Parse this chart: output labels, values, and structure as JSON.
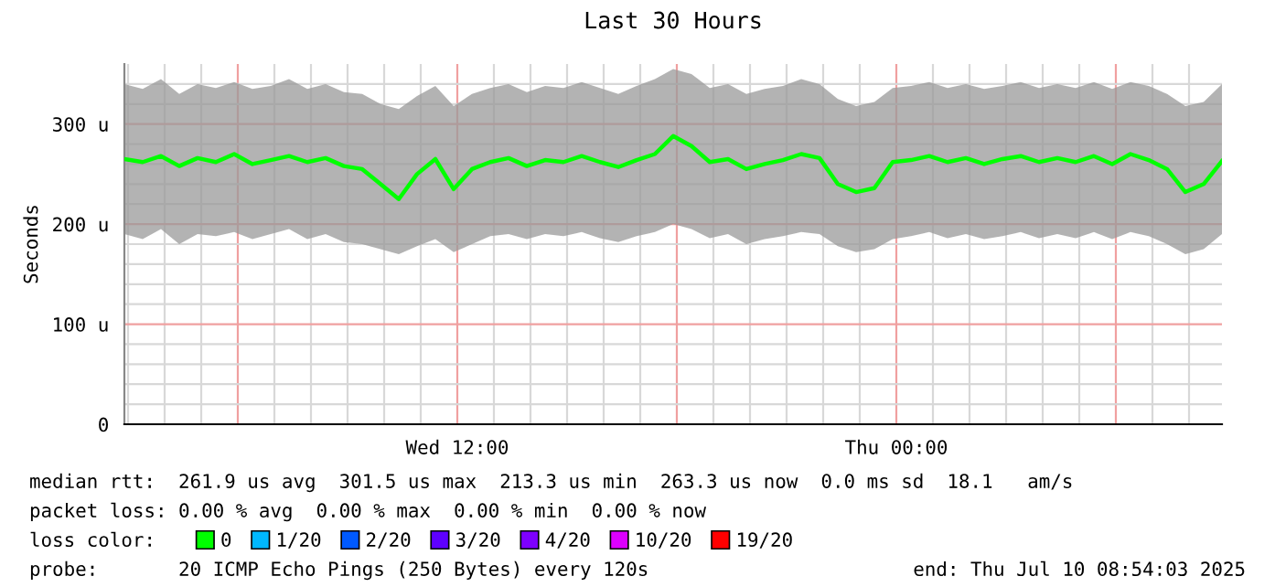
{
  "chart_data": {
    "type": "line",
    "title": "Last 30 Hours",
    "ylabel": "Seconds",
    "legend_title": "loss color:",
    "x": [
      "2025-07-09T02:54",
      "2025-07-09T03:24",
      "2025-07-09T03:54",
      "2025-07-09T04:24",
      "2025-07-09T04:54",
      "2025-07-09T05:24",
      "2025-07-09T05:54",
      "2025-07-09T06:24",
      "2025-07-09T06:54",
      "2025-07-09T07:24",
      "2025-07-09T07:54",
      "2025-07-09T08:24",
      "2025-07-09T08:54",
      "2025-07-09T09:24",
      "2025-07-09T09:54",
      "2025-07-09T10:24",
      "2025-07-09T10:54",
      "2025-07-09T11:24",
      "2025-07-09T11:54",
      "2025-07-09T12:24",
      "2025-07-09T12:54",
      "2025-07-09T13:24",
      "2025-07-09T13:54",
      "2025-07-09T14:24",
      "2025-07-09T14:54",
      "2025-07-09T15:24",
      "2025-07-09T15:54",
      "2025-07-09T16:24",
      "2025-07-09T16:54",
      "2025-07-09T17:24",
      "2025-07-09T17:54",
      "2025-07-09T18:24",
      "2025-07-09T18:54",
      "2025-07-09T19:24",
      "2025-07-09T19:54",
      "2025-07-09T20:24",
      "2025-07-09T20:54",
      "2025-07-09T21:24",
      "2025-07-09T21:54",
      "2025-07-09T22:24",
      "2025-07-09T22:54",
      "2025-07-09T23:24",
      "2025-07-09T23:54",
      "2025-07-10T00:24",
      "2025-07-10T00:54",
      "2025-07-10T01:24",
      "2025-07-10T01:54",
      "2025-07-10T02:24",
      "2025-07-10T02:54",
      "2025-07-10T03:24",
      "2025-07-10T03:54",
      "2025-07-10T04:24",
      "2025-07-10T04:54",
      "2025-07-10T05:24",
      "2025-07-10T05:54",
      "2025-07-10T06:24",
      "2025-07-10T06:54",
      "2025-07-10T07:24",
      "2025-07-10T07:54",
      "2025-07-10T08:24",
      "2025-07-10T08:54"
    ],
    "series": [
      {
        "name": "0",
        "color": "#00ff00",
        "values": [
          265,
          262,
          268,
          258,
          266,
          262,
          270,
          260,
          264,
          268,
          262,
          266,
          258,
          255,
          240,
          225,
          250,
          265,
          235,
          255,
          262,
          266,
          258,
          264,
          262,
          268,
          262,
          257,
          264,
          270,
          288,
          278,
          262,
          265,
          255,
          260,
          264,
          270,
          266,
          240,
          232,
          236,
          262,
          264,
          268,
          262,
          266,
          260,
          265,
          268,
          262,
          266,
          262,
          268,
          260,
          270,
          264,
          255,
          232,
          240,
          263
        ],
        "lower": [
          190,
          185,
          195,
          180,
          190,
          188,
          192,
          185,
          190,
          195,
          185,
          190,
          182,
          180,
          175,
          170,
          178,
          185,
          172,
          180,
          188,
          190,
          185,
          190,
          188,
          192,
          186,
          182,
          188,
          192,
          200,
          195,
          186,
          190,
          180,
          185,
          188,
          192,
          190,
          178,
          172,
          175,
          185,
          188,
          192,
          186,
          190,
          185,
          188,
          192,
          186,
          190,
          186,
          192,
          185,
          192,
          188,
          180,
          170,
          175,
          190
        ],
        "upper": [
          340,
          335,
          345,
          330,
          340,
          336,
          342,
          335,
          338,
          345,
          335,
          340,
          332,
          330,
          320,
          315,
          328,
          338,
          318,
          330,
          336,
          340,
          332,
          338,
          336,
          342,
          336,
          330,
          338,
          345,
          355,
          350,
          336,
          340,
          330,
          335,
          338,
          345,
          340,
          325,
          318,
          322,
          336,
          338,
          342,
          336,
          340,
          335,
          338,
          342,
          336,
          340,
          336,
          342,
          335,
          342,
          338,
          330,
          318,
          322,
          340
        ]
      },
      {
        "name": "1/20",
        "color": "#00b8ff",
        "values": [
          null,
          null,
          null,
          null,
          null,
          null,
          null,
          null,
          null,
          null,
          null,
          null,
          null,
          null,
          null,
          null,
          null,
          null,
          null,
          null,
          null,
          null,
          null,
          null,
          null,
          null,
          null,
          null,
          null,
          null,
          null,
          null,
          null,
          null,
          null,
          null,
          null,
          null,
          null,
          null,
          null,
          null,
          null,
          null,
          null,
          null,
          null,
          null,
          null,
          null,
          null,
          null,
          null,
          null,
          null,
          null,
          null,
          null,
          null,
          null,
          null
        ]
      },
      {
        "name": "2/20",
        "color": "#0059ff",
        "values": [
          null,
          null,
          null,
          null,
          null,
          null,
          null,
          null,
          null,
          null,
          null,
          null,
          null,
          null,
          null,
          null,
          null,
          null,
          null,
          null,
          null,
          null,
          null,
          null,
          null,
          null,
          null,
          null,
          null,
          null,
          null,
          null,
          null,
          null,
          null,
          null,
          null,
          null,
          null,
          null,
          null,
          null,
          null,
          null,
          null,
          null,
          null,
          null,
          null,
          null,
          null,
          null,
          null,
          null,
          null,
          null,
          null,
          null,
          null,
          null,
          null
        ]
      },
      {
        "name": "3/20",
        "color": "#5e00ff",
        "values": [
          null,
          null,
          null,
          null,
          null,
          null,
          null,
          null,
          null,
          null,
          null,
          null,
          null,
          null,
          null,
          null,
          null,
          null,
          null,
          null,
          null,
          null,
          null,
          null,
          null,
          null,
          null,
          null,
          null,
          null,
          null,
          null,
          null,
          null,
          null,
          null,
          null,
          null,
          null,
          null,
          null,
          null,
          null,
          null,
          null,
          null,
          null,
          null,
          null,
          null,
          null,
          null,
          null,
          null,
          null,
          null,
          null,
          null,
          null,
          null,
          null
        ]
      },
      {
        "name": "4/20",
        "color": "#7e00ff",
        "values": [
          null,
          null,
          null,
          null,
          null,
          null,
          null,
          null,
          null,
          null,
          null,
          null,
          null,
          null,
          null,
          null,
          null,
          null,
          null,
          null,
          null,
          null,
          null,
          null,
          null,
          null,
          null,
          null,
          null,
          null,
          null,
          null,
          null,
          null,
          null,
          null,
          null,
          null,
          null,
          null,
          null,
          null,
          null,
          null,
          null,
          null,
          null,
          null,
          null,
          null,
          null,
          null,
          null,
          null,
          null,
          null,
          null,
          null,
          null,
          null,
          null
        ]
      },
      {
        "name": "10/20",
        "color": "#dd00ff",
        "values": [
          null,
          null,
          null,
          null,
          null,
          null,
          null,
          null,
          null,
          null,
          null,
          null,
          null,
          null,
          null,
          null,
          null,
          null,
          null,
          null,
          null,
          null,
          null,
          null,
          null,
          null,
          null,
          null,
          null,
          null,
          null,
          null,
          null,
          null,
          null,
          null,
          null,
          null,
          null,
          null,
          null,
          null,
          null,
          null,
          null,
          null,
          null,
          null,
          null,
          null,
          null,
          null,
          null,
          null,
          null,
          null,
          null,
          null,
          null,
          null,
          null
        ]
      },
      {
        "name": "19/20",
        "color": "#ff0000",
        "values": [
          null,
          null,
          null,
          null,
          null,
          null,
          null,
          null,
          null,
          null,
          null,
          null,
          null,
          null,
          null,
          null,
          null,
          null,
          null,
          null,
          null,
          null,
          null,
          null,
          null,
          null,
          null,
          null,
          null,
          null,
          null,
          null,
          null,
          null,
          null,
          null,
          null,
          null,
          null,
          null,
          null,
          null,
          null,
          null,
          null,
          null,
          null,
          null,
          null,
          null,
          null,
          null,
          null,
          null,
          null,
          null,
          null,
          null,
          null,
          null,
          null
        ]
      }
    ],
    "xlim": [
      "2025-07-09T02:54",
      "2025-07-10T08:54"
    ],
    "xticks": [
      {
        "value": "2025-07-09T03:00",
        "label": null
      },
      {
        "value": "2025-07-09T04:00",
        "label": null
      },
      {
        "value": "2025-07-09T05:00",
        "label": null
      },
      {
        "value": "2025-07-09T06:00",
        "label": null
      },
      {
        "value": "2025-07-09T07:00",
        "label": null
      },
      {
        "value": "2025-07-09T08:00",
        "label": null
      },
      {
        "value": "2025-07-09T09:00",
        "label": null
      },
      {
        "value": "2025-07-09T10:00",
        "label": null
      },
      {
        "value": "2025-07-09T11:00",
        "label": null
      },
      {
        "value": "2025-07-09T12:00",
        "label": "Wed 12:00"
      },
      {
        "value": "2025-07-09T13:00",
        "label": null
      },
      {
        "value": "2025-07-09T14:00",
        "label": null
      },
      {
        "value": "2025-07-09T15:00",
        "label": null
      },
      {
        "value": "2025-07-09T16:00",
        "label": null
      },
      {
        "value": "2025-07-09T17:00",
        "label": null
      },
      {
        "value": "2025-07-09T18:00",
        "label": null
      },
      {
        "value": "2025-07-09T19:00",
        "label": null
      },
      {
        "value": "2025-07-09T20:00",
        "label": null
      },
      {
        "value": "2025-07-09T21:00",
        "label": null
      },
      {
        "value": "2025-07-09T22:00",
        "label": null
      },
      {
        "value": "2025-07-09T23:00",
        "label": null
      },
      {
        "value": "2025-07-10T00:00",
        "label": "Thu 00:00"
      },
      {
        "value": "2025-07-10T01:00",
        "label": null
      },
      {
        "value": "2025-07-10T02:00",
        "label": null
      },
      {
        "value": "2025-07-10T03:00",
        "label": null
      },
      {
        "value": "2025-07-10T04:00",
        "label": null
      },
      {
        "value": "2025-07-10T05:00",
        "label": null
      },
      {
        "value": "2025-07-10T06:00",
        "label": null
      },
      {
        "value": "2025-07-10T07:00",
        "label": null
      },
      {
        "value": "2025-07-10T08:00",
        "label": null
      }
    ],
    "ylim": [
      0,
      360
    ],
    "yticks": [
      {
        "value": 0,
        "label": "0"
      },
      {
        "value": 20,
        "label": null
      },
      {
        "value": 40,
        "label": null
      },
      {
        "value": 60,
        "label": null
      },
      {
        "value": 80,
        "label": null
      },
      {
        "value": 100,
        "label": "100 u"
      },
      {
        "value": 120,
        "label": null
      },
      {
        "value": 140,
        "label": null
      },
      {
        "value": 160,
        "label": null
      },
      {
        "value": 180,
        "label": null
      },
      {
        "value": 200,
        "label": "200 u"
      },
      {
        "value": 220,
        "label": null
      },
      {
        "value": 240,
        "label": null
      },
      {
        "value": 260,
        "label": null
      },
      {
        "value": 280,
        "label": null
      },
      {
        "value": 300,
        "label": "300 u"
      },
      {
        "value": 320,
        "label": null
      },
      {
        "value": 340,
        "label": null
      }
    ],
    "grid": true,
    "legend": "bottom",
    "annotations": [
      "median rtt:  261.9 us avg  301.5 us max  213.3 us min  263.3 us now  0.0 ms sd  18.1   am/s",
      "packet loss: 0.00 % avg  0.00 % max  0.00 % min  0.00 % now",
      "probe:       20 ICMP Echo Pings (250 Bytes) every 120s",
      "end: Thu Jul 10 08:54:03 2025"
    ]
  }
}
